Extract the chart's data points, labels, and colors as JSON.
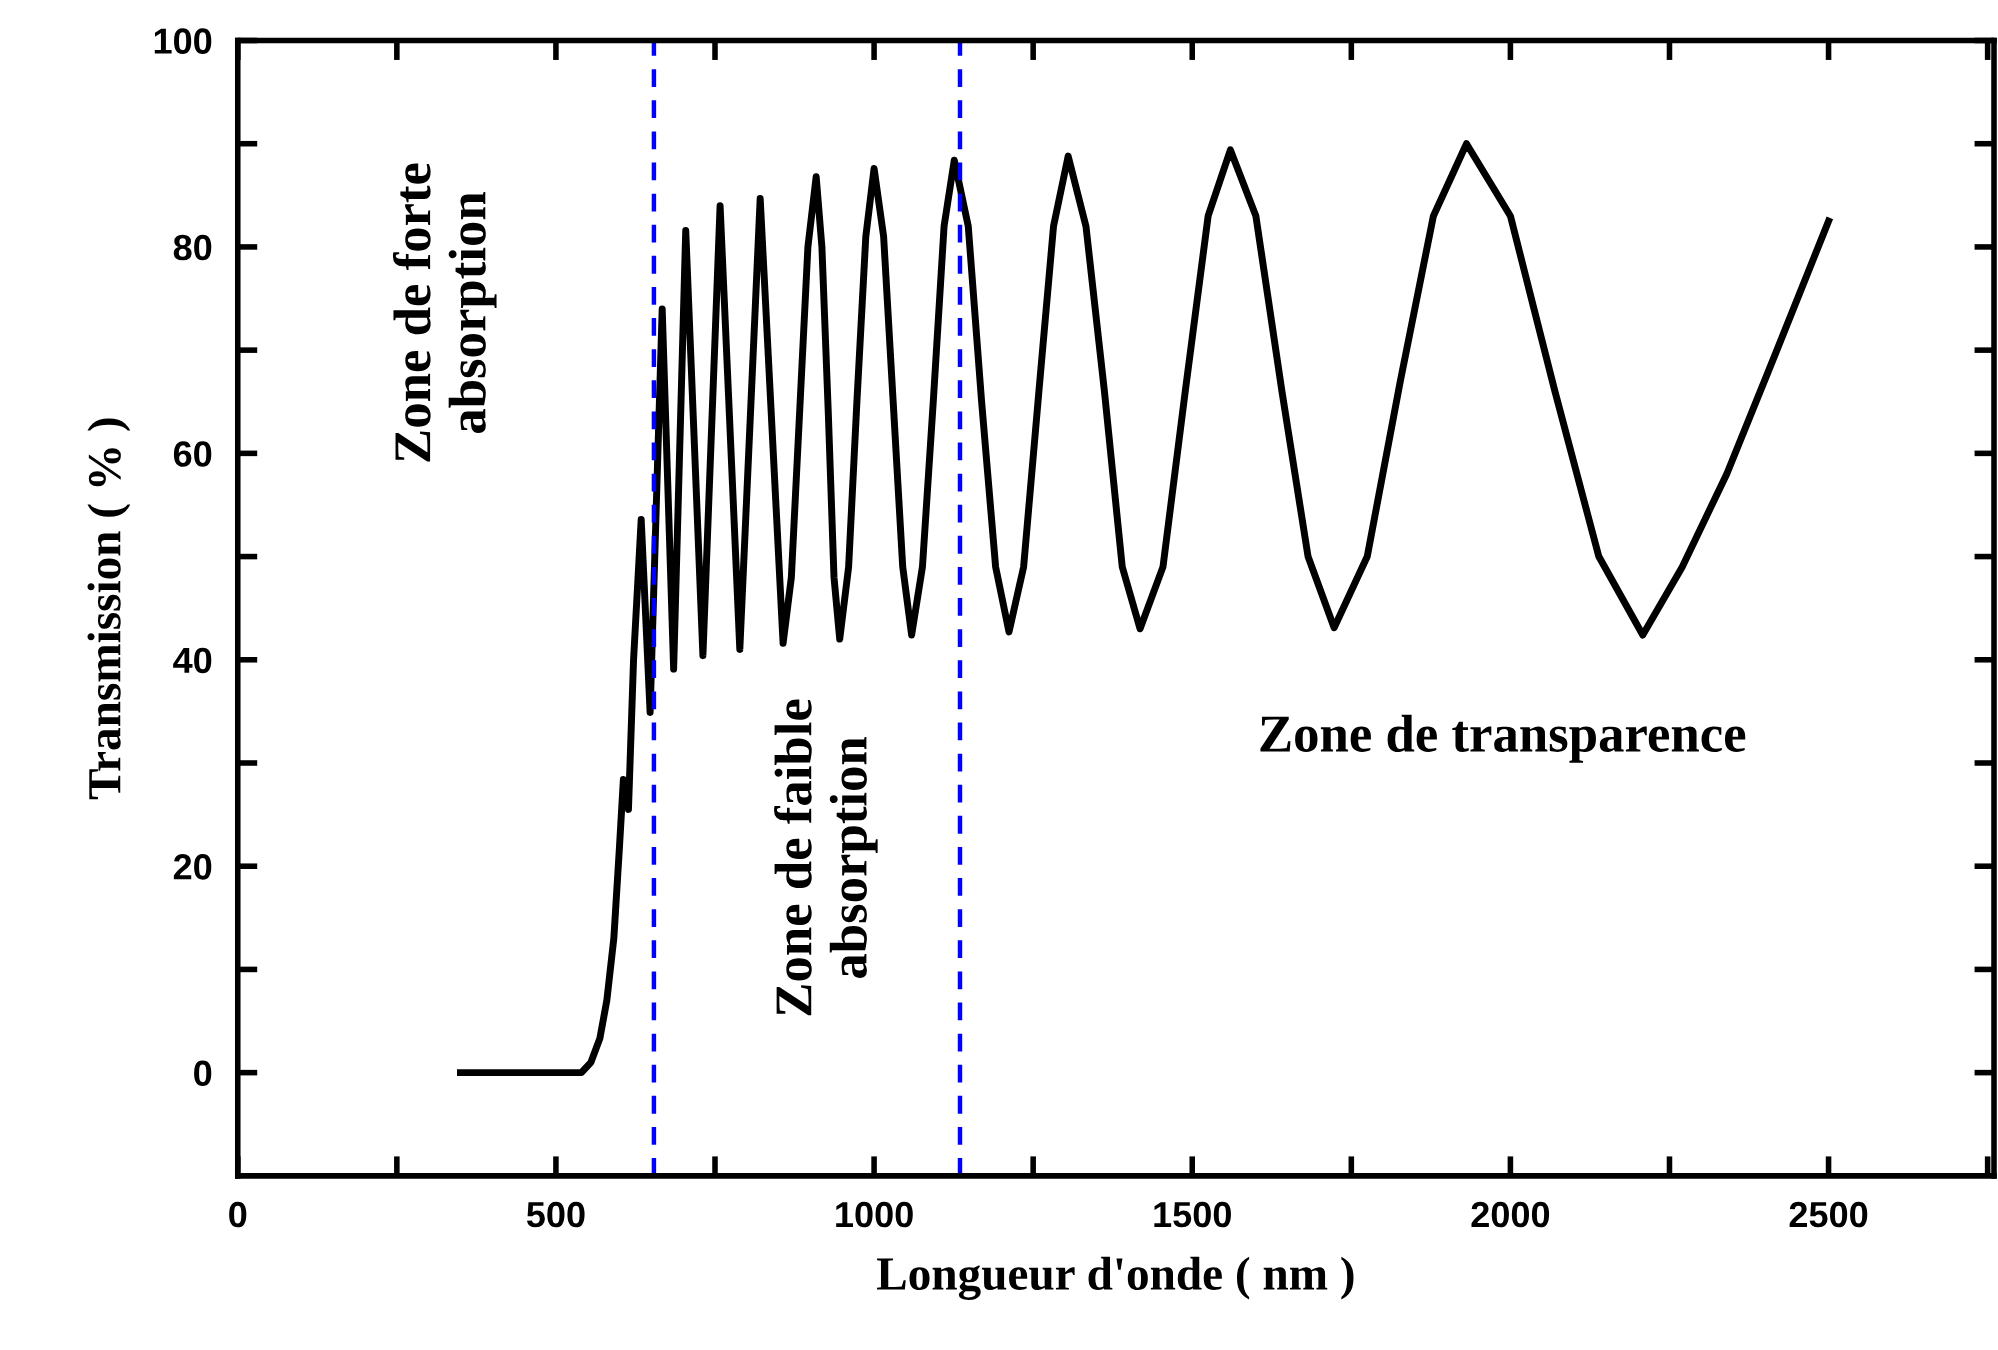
{
  "chart_data": {
    "type": "line",
    "xlabel": "Longueur d'onde ( nm )",
    "ylabel": "Transmission ( % )",
    "x": [
      350,
      540,
      555,
      569,
      580,
      591,
      600,
      606,
      614,
      622,
      634,
      648,
      667,
      685,
      704,
      731,
      758,
      789,
      821,
      857,
      870,
      883,
      896,
      909,
      918,
      928,
      937,
      946,
      960,
      973,
      987,
      1000,
      1015,
      1030,
      1045,
      1059,
      1076,
      1093,
      1110,
      1126,
      1148,
      1169,
      1191,
      1212,
      1235,
      1259,
      1282,
      1305,
      1333,
      1362,
      1390,
      1418,
      1454,
      1489,
      1525,
      1560,
      1600,
      1641,
      1682,
      1723,
      1775,
      1827,
      1879,
      1931,
      2000,
      2070,
      2139,
      2208,
      2270,
      2340,
      2409,
      2500
    ],
    "series": [
      {
        "color": "#000000",
        "values": [
          0,
          0,
          1,
          3.3,
          7,
          13,
          22,
          28.4,
          25.5,
          40,
          53.6,
          34.9,
          74,
          39.1,
          81.6,
          40.4,
          84,
          41,
          84.7,
          41.6,
          48,
          64,
          80,
          86.8,
          80,
          64,
          48,
          42,
          49,
          65,
          81,
          87.6,
          81,
          65,
          49,
          42.4,
          49,
          65,
          82,
          88.4,
          82,
          65,
          49,
          42.7,
          49,
          66,
          82,
          88.8,
          82,
          66,
          49,
          43,
          49,
          66,
          83,
          89.4,
          83,
          66,
          50,
          43.1,
          50,
          67,
          83,
          90,
          83,
          66,
          50,
          42.4,
          49,
          58,
          68.5,
          82.5
        ]
      }
    ],
    "xlim": [
      0,
      2760
    ],
    "ylim": [
      -10,
      100
    ],
    "xticks": [
      0,
      {
        "value": 250,
        "label": null
      },
      500,
      {
        "value": 750,
        "label": null
      },
      1000,
      {
        "value": 1250,
        "label": null
      },
      1500,
      {
        "value": 1750,
        "label": null
      },
      2000,
      {
        "value": 2250,
        "label": null
      },
      2500,
      {
        "value": 2750,
        "label": null
      }
    ],
    "yticks": [
      0,
      {
        "value": 10,
        "label": null
      },
      20,
      {
        "value": 30,
        "label": null
      },
      40,
      {
        "value": 50,
        "label": null
      },
      60,
      {
        "value": 70,
        "label": null
      },
      80,
      {
        "value": 90,
        "label": null
      },
      100
    ],
    "ref_lines": [
      {
        "axis": "x",
        "value": 654,
        "color": "#0000ff",
        "line_style": "dashed"
      },
      {
        "axis": "x",
        "value": 1135,
        "color": "#0000ff",
        "line_style": "dashed"
      }
    ],
    "annotations": [
      "Zone de forte\nabsorption",
      "Zone de faible\nabsorption",
      "Zone de transparence"
    ],
    "grid": false,
    "legend": false,
    "marker": "none",
    "line_style": "solid"
  }
}
